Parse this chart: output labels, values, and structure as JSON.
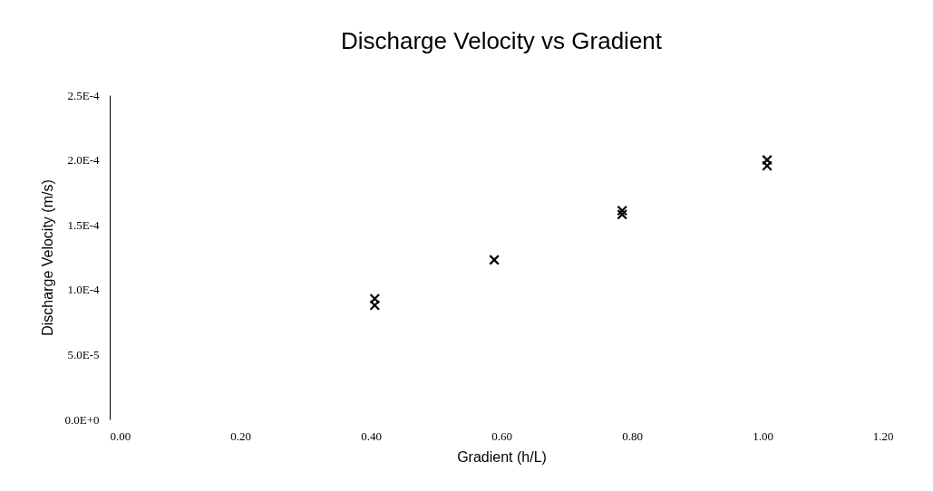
{
  "chart_data": {
    "type": "scatter",
    "title": "Discharge Velocity vs Gradient",
    "xlabel": "Gradient (h/L)",
    "ylabel": "Discharge Velocity (m/s)",
    "x": [
      0.406,
      0.406,
      0.589,
      0.785,
      0.785,
      1.007,
      1.007
    ],
    "series": [
      {
        "color": "#000000",
        "values": [
          9.3e-05,
          8.8e-05,
          0.000123,
          0.000161,
          0.000158,
          0.0002,
          0.0001955
        ]
      }
    ],
    "xlim": [
      0,
      1.2
    ],
    "xticks": [
      {
        "value": 0,
        "label": "0.00"
      },
      {
        "value": 0.2,
        "label": "0.20"
      },
      {
        "value": 0.4,
        "label": "0.40"
      },
      {
        "value": 0.6,
        "label": "0.60"
      },
      {
        "value": 0.8,
        "label": "0.80"
      },
      {
        "value": 1.0,
        "label": "1.00"
      },
      {
        "value": 1.2,
        "label": "1.20"
      }
    ],
    "ylim": [
      0,
      0.00025
    ],
    "yticks": [
      {
        "value": 0,
        "label": "0.0E+0"
      },
      {
        "value": 5e-05,
        "label": "5.0E-5"
      },
      {
        "value": 0.0001,
        "label": "1.0E-4"
      },
      {
        "value": 0.00015,
        "label": "1.5E-4"
      },
      {
        "value": 0.0002,
        "label": "2.0E-4"
      },
      {
        "value": 0.00025,
        "label": "2.5E-4"
      }
    ],
    "grid": false,
    "legend": false,
    "marker": "cross"
  }
}
